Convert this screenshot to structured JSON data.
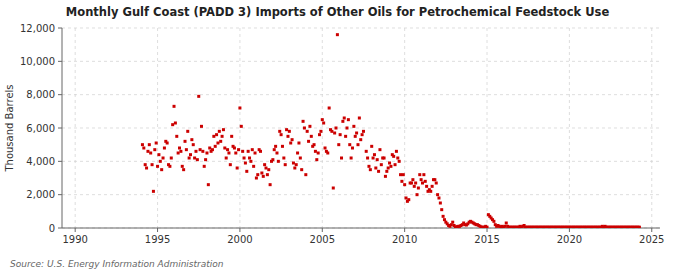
{
  "chart_data": {
    "type": "scatter",
    "title": "Monthly Gulf Coast (PADD 3) Imports of Other Oils for Petrochemical Feedstock Use",
    "ylabel": "Thousand Barrels",
    "source": "Source: U.S. Energy Information Administration",
    "color": "#CC0000",
    "marker": "square",
    "grid": true,
    "xlim": [
      1989.2,
      2025.5
    ],
    "ylim": [
      0,
      12000
    ],
    "xticks": [
      1990,
      1995,
      2000,
      2005,
      2010,
      2015,
      2020,
      2025
    ],
    "yticks": [
      0,
      {
        "value": 2000,
        "label": "2,000"
      },
      {
        "value": 4000,
        "label": "4,000"
      },
      {
        "value": 6000,
        "label": "6,000"
      },
      {
        "value": 8000,
        "label": "8,000"
      },
      {
        "value": 10000,
        "label": "10,000"
      },
      {
        "value": 12000,
        "label": "12,000"
      }
    ],
    "x": [
      1994.083,
      1994.167,
      1994.25,
      1994.333,
      1994.417,
      1994.5,
      1994.583,
      1994.667,
      1994.75,
      1994.833,
      1994.917,
      1995.0,
      1995.083,
      1995.167,
      1995.25,
      1995.333,
      1995.417,
      1995.5,
      1995.583,
      1995.667,
      1995.75,
      1995.833,
      1995.917,
      1996.0,
      1996.083,
      1996.167,
      1996.25,
      1996.333,
      1996.417,
      1996.5,
      1996.583,
      1996.667,
      1996.75,
      1996.833,
      1996.917,
      1997.0,
      1997.083,
      1997.167,
      1997.25,
      1997.333,
      1997.417,
      1997.5,
      1997.583,
      1997.667,
      1997.75,
      1997.833,
      1997.917,
      1998.0,
      1998.083,
      1998.167,
      1998.25,
      1998.333,
      1998.417,
      1998.5,
      1998.583,
      1998.667,
      1998.75,
      1998.833,
      1998.917,
      1999.0,
      1999.083,
      1999.167,
      1999.25,
      1999.333,
      1999.417,
      1999.5,
      1999.583,
      1999.667,
      1999.75,
      1999.833,
      1999.917,
      2000.0,
      2000.083,
      2000.167,
      2000.25,
      2000.333,
      2000.417,
      2000.5,
      2000.583,
      2000.667,
      2000.75,
      2000.833,
      2000.917,
      2001.0,
      2001.083,
      2001.167,
      2001.25,
      2001.333,
      2001.417,
      2001.5,
      2001.583,
      2001.667,
      2001.75,
      2001.833,
      2001.917,
      2002.0,
      2002.083,
      2002.167,
      2002.25,
      2002.333,
      2002.417,
      2002.5,
      2002.583,
      2002.667,
      2002.75,
      2002.833,
      2002.917,
      2003.0,
      2003.083,
      2003.167,
      2003.25,
      2003.333,
      2003.417,
      2003.5,
      2003.583,
      2003.667,
      2003.75,
      2003.833,
      2003.917,
      2004.0,
      2004.083,
      2004.167,
      2004.25,
      2004.333,
      2004.417,
      2004.5,
      2004.583,
      2004.667,
      2004.75,
      2004.833,
      2004.917,
      2005.0,
      2005.083,
      2005.167,
      2005.25,
      2005.333,
      2005.417,
      2005.5,
      2005.583,
      2005.667,
      2005.75,
      2005.833,
      2005.917,
      2006.0,
      2006.083,
      2006.167,
      2006.25,
      2006.333,
      2006.417,
      2006.5,
      2006.583,
      2006.667,
      2006.75,
      2006.833,
      2006.917,
      2007.0,
      2007.083,
      2007.167,
      2007.25,
      2007.333,
      2007.417,
      2007.5,
      2007.667,
      2007.75,
      2007.833,
      2007.917,
      2008.0,
      2008.083,
      2008.167,
      2008.25,
      2008.333,
      2008.417,
      2008.5,
      2008.583,
      2008.667,
      2008.75,
      2008.833,
      2008.917,
      2009.0,
      2009.083,
      2009.167,
      2009.25,
      2009.333,
      2009.417,
      2009.5,
      2009.583,
      2009.667,
      2009.75,
      2009.833,
      2009.917,
      2010.0,
      2010.083,
      2010.167,
      2010.25,
      2010.333,
      2010.417,
      2010.5,
      2010.583,
      2010.667,
      2010.75,
      2010.833,
      2010.917,
      2011.0,
      2011.083,
      2011.167,
      2011.25,
      2011.333,
      2011.417,
      2011.5,
      2011.583,
      2011.667,
      2011.75,
      2011.833,
      2011.917,
      2012.0,
      2012.083,
      2012.167,
      2012.25,
      2012.333,
      2012.417,
      2012.5,
      2012.583,
      2012.667,
      2012.75,
      2012.833,
      2012.917,
      2013.0,
      2013.083,
      2013.167,
      2013.25,
      2013.333,
      2013.417,
      2013.5,
      2013.583,
      2013.667,
      2013.75,
      2013.833,
      2013.917,
      2014.0,
      2014.083,
      2014.167,
      2014.25,
      2014.333,
      2014.417,
      2014.5,
      2014.583,
      2014.667,
      2014.75,
      2014.833,
      2014.917,
      2015.0,
      2015.083,
      2015.167,
      2015.25,
      2015.333,
      2015.417,
      2015.5,
      2015.583,
      2015.667,
      2015.75,
      2015.833,
      2015.917,
      2016.0,
      2016.083,
      2016.167,
      2016.25,
      2016.333,
      2016.417,
      2016.5,
      2016.583,
      2016.667,
      2016.75,
      2016.833,
      2016.917,
      2017.0,
      2017.083,
      2017.167,
      2017.25,
      2017.333,
      2017.417,
      2017.5,
      2017.583,
      2017.667,
      2017.75,
      2017.833,
      2017.917,
      2018.0,
      2018.083,
      2018.167,
      2018.25,
      2018.333,
      2018.417,
      2018.5,
      2018.583,
      2018.667,
      2018.75,
      2018.833,
      2018.917,
      2019.0,
      2019.083,
      2019.167,
      2019.25,
      2019.333,
      2019.417,
      2019.5,
      2019.583,
      2019.667,
      2019.75,
      2019.833,
      2019.917,
      2020.0,
      2020.083,
      2020.167,
      2020.25,
      2020.333,
      2020.417,
      2020.5,
      2020.583,
      2020.667,
      2020.75,
      2020.833,
      2020.917,
      2021.0,
      2021.083,
      2021.167,
      2021.25,
      2021.333,
      2021.417,
      2021.5,
      2021.583,
      2021.667,
      2021.75,
      2021.833,
      2021.917,
      2022.0,
      2022.083,
      2022.167,
      2022.25,
      2022.333,
      2022.417,
      2022.5,
      2022.583,
      2022.667,
      2022.75,
      2022.833,
      2022.917,
      2023.0,
      2023.083,
      2023.167,
      2023.25,
      2023.333,
      2023.417,
      2023.5,
      2023.583,
      2023.667,
      2023.75,
      2023.833,
      2023.917,
      2024.0,
      2024.083,
      2024.167,
      2024.25
    ],
    "values": [
      5000,
      4800,
      3800,
      3600,
      4600,
      5000,
      4500,
      3800,
      2200,
      4700,
      5100,
      3700,
      4400,
      4000,
      3500,
      4200,
      4800,
      5200,
      5100,
      3800,
      3700,
      4200,
      6200,
      7300,
      6300,
      5500,
      4500,
      4800,
      4600,
      3700,
      3500,
      5200,
      4700,
      5800,
      4200,
      4400,
      5300,
      5000,
      4200,
      4600,
      4100,
      7900,
      4700,
      6100,
      4600,
      3700,
      4100,
      4500,
      2600,
      4800,
      4600,
      4700,
      5500,
      4900,
      5600,
      5100,
      5800,
      5200,
      5500,
      5900,
      4800,
      4200,
      4700,
      4500,
      3800,
      5500,
      4900,
      4800,
      4500,
      3600,
      4700,
      7200,
      6100,
      4600,
      4200,
      3900,
      3400,
      4600,
      4200,
      4000,
      4700,
      3700,
      4500,
      3000,
      3200,
      4700,
      4600,
      3300,
      3100,
      3800,
      3600,
      3200,
      3500,
      2600,
      4000,
      4100,
      4700,
      4900,
      4500,
      4000,
      5800,
      5600,
      4900,
      4200,
      3800,
      5900,
      5500,
      5800,
      5100,
      5300,
      3900,
      3600,
      3800,
      4500,
      5100,
      4200,
      3500,
      6400,
      6000,
      3200,
      5800,
      5200,
      6100,
      5500,
      4900,
      5000,
      4600,
      4100,
      4500,
      5600,
      5800,
      6500,
      6300,
      4800,
      4600,
      4500,
      7200,
      5900,
      5800,
      2400,
      5700,
      6000,
      11600,
      5000,
      5600,
      4200,
      6400,
      6600,
      5500,
      6000,
      6500,
      5000,
      4200,
      4800,
      6100,
      5500,
      5700,
      5000,
      6600,
      5300,
      5600,
      5800,
      4600,
      4200,
      3700,
      3500,
      4900,
      4200,
      4400,
      3600,
      4100,
      3400,
      4700,
      3800,
      4200,
      4200,
      3100,
      3400,
      3600,
      3900,
      3700,
      4400,
      4300,
      3800,
      4600,
      4200,
      4000,
      3200,
      2800,
      3200,
      2600,
      1800,
      1600,
      1700,
      2700,
      2700,
      2900,
      2500,
      2700,
      2000,
      2400,
      3200,
      2900,
      2700,
      3200,
      2800,
      2500,
      2200,
      2300,
      2200,
      2500,
      2900,
      2900,
      2700,
      2000,
      1800,
      1500,
      1100,
      700,
      500,
      350,
      250,
      150,
      100,
      200,
      350,
      150,
      50,
      80,
      100,
      100,
      150,
      200,
      300,
      200,
      180,
      250,
      350,
      400,
      350,
      300,
      250,
      200,
      200,
      150,
      100,
      50,
      50,
      50,
      100,
      50,
      800,
      700,
      600,
      500,
      400,
      200,
      100,
      150,
      100,
      50,
      100,
      50,
      100,
      300,
      100,
      50,
      50,
      50,
      50,
      50,
      50,
      50,
      50,
      100,
      50,
      100,
      150,
      50,
      50,
      50,
      50,
      50,
      50,
      50,
      50,
      50,
      50,
      50,
      50,
      50,
      50,
      50,
      50,
      50,
      50,
      50,
      50,
      50,
      50,
      50,
      50,
      50,
      50,
      50,
      50,
      50,
      50,
      50,
      50,
      50,
      50,
      50,
      50,
      50,
      50,
      50,
      50,
      50,
      50,
      50,
      50,
      50,
      50,
      50,
      50,
      50,
      50,
      50,
      50,
      50,
      50,
      50,
      50,
      100,
      50,
      100,
      50,
      50,
      50,
      50,
      50,
      50,
      50,
      50,
      50,
      50,
      50,
      50,
      50,
      50,
      50,
      50,
      50,
      50,
      50,
      50,
      50,
      50,
      50,
      50,
      50
    ]
  }
}
